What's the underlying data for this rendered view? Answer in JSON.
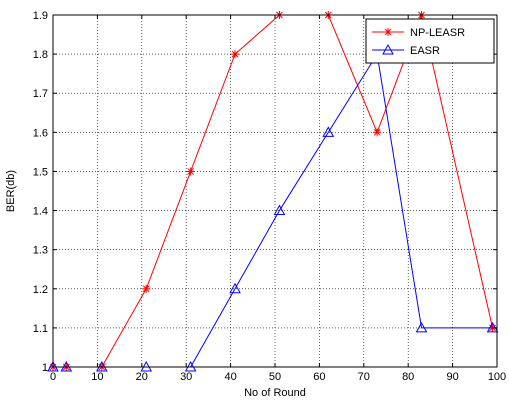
{
  "chart_data": {
    "type": "line",
    "title": "",
    "xlabel": "No of Round",
    "ylabel": "BER(db)",
    "xlim": [
      0,
      100
    ],
    "ylim": [
      1,
      1.9
    ],
    "xticks": [
      0,
      10,
      20,
      30,
      40,
      50,
      60,
      70,
      80,
      90,
      100
    ],
    "xtick_labels": [
      "0",
      "10",
      "20",
      "30",
      "40",
      "50",
      "60",
      "70",
      "80",
      "90",
      "100"
    ],
    "yticks": [
      1,
      1.1,
      1.2,
      1.3,
      1.4,
      1.5,
      1.6,
      1.7,
      1.8,
      1.9
    ],
    "ytick_labels": [
      "1",
      "1.1",
      "1.2",
      "1.3",
      "1.4",
      "1.5",
      "1.6",
      "1.7",
      "1.8",
      "1.9"
    ],
    "grid": true,
    "legend_position": "top-right",
    "series": [
      {
        "name": "NP-LEASR",
        "color": "#ff0000",
        "marker": "asterisk",
        "x": [
          0,
          3,
          11,
          21,
          31,
          41,
          51,
          62,
          73,
          83,
          99
        ],
        "y": [
          1.0,
          1.0,
          1.0,
          1.2,
          1.5,
          1.8,
          1.9,
          1.9,
          1.6,
          1.9,
          1.1
        ]
      },
      {
        "name": "EASR",
        "color": "#0000ff",
        "marker": "triangle",
        "x": [
          0,
          3,
          11,
          21,
          31,
          41,
          51,
          62,
          73,
          83,
          99
        ],
        "y": [
          1.0,
          1.0,
          1.0,
          1.0,
          1.0,
          1.2,
          1.4,
          1.6,
          1.8,
          1.1,
          1.1
        ]
      }
    ]
  }
}
